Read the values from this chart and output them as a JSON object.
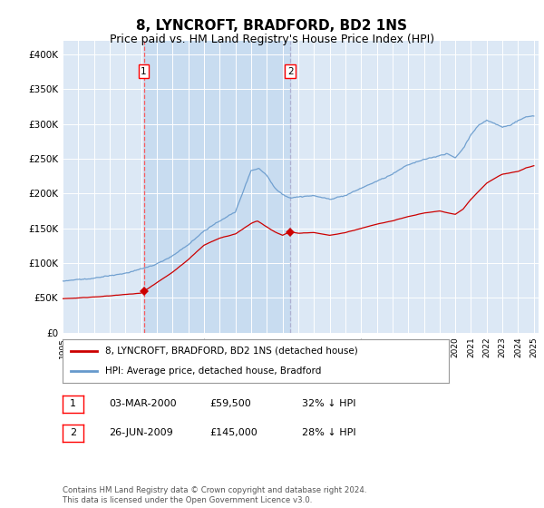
{
  "title": "8, LYNCROFT, BRADFORD, BD2 1NS",
  "subtitle": "Price paid vs. HM Land Registry's House Price Index (HPI)",
  "plot_bg_color": "#dce8f5",
  "grid_color": "#ffffff",
  "ylim": [
    0,
    420000
  ],
  "yticks": [
    0,
    50000,
    100000,
    150000,
    200000,
    250000,
    300000,
    350000,
    400000
  ],
  "ytick_labels": [
    "£0",
    "£50K",
    "£100K",
    "£150K",
    "£200K",
    "£250K",
    "£300K",
    "£350K",
    "£400K"
  ],
  "legend_label_red": "8, LYNCROFT, BRADFORD, BD2 1NS (detached house)",
  "legend_label_blue": "HPI: Average price, detached house, Bradford",
  "annotation1_date": "03-MAR-2000",
  "annotation1_price": "£59,500",
  "annotation1_hpi": "32% ↓ HPI",
  "annotation2_date": "26-JUN-2009",
  "annotation2_price": "£145,000",
  "annotation2_hpi": "28% ↓ HPI",
  "footer": "Contains HM Land Registry data © Crown copyright and database right 2024.\nThis data is licensed under the Open Government Licence v3.0.",
  "sale1_year": 2000.17,
  "sale1_price": 59500,
  "sale2_year": 2009.5,
  "sale2_price": 145000,
  "red_line_color": "#cc0000",
  "blue_line_color": "#6699cc",
  "shade_color": "#c8dcf0",
  "vline1_color": "#ff4444",
  "vline2_color": "#aaaacc"
}
